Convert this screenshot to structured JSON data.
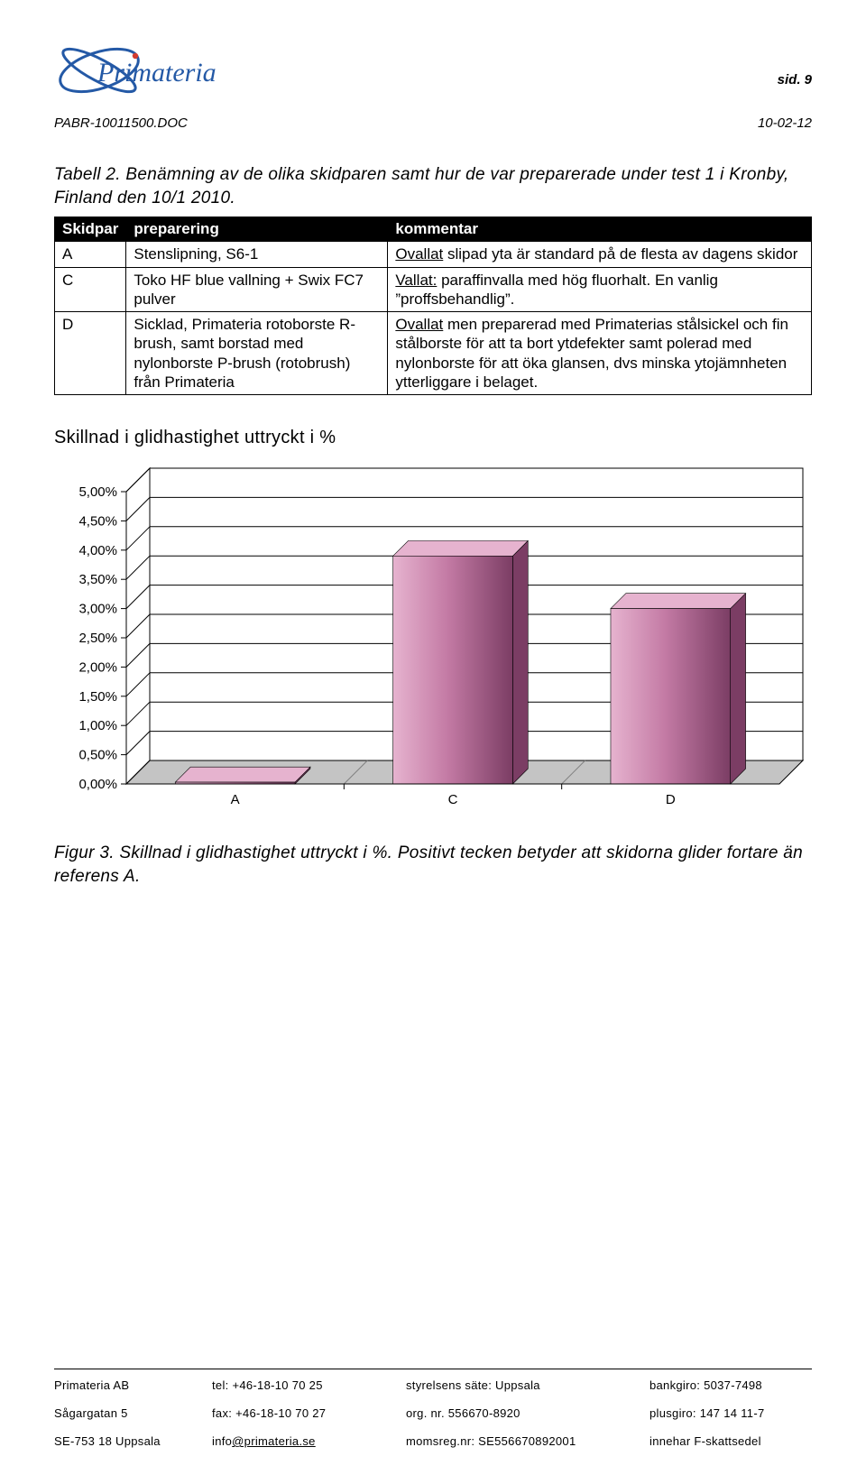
{
  "header": {
    "page_no_label": "sid. 9",
    "doc_code": "PABR-10011500.DOC",
    "doc_date": "10-02-12",
    "logo_text": "Primateria",
    "logo_color_blue": "#2459a6",
    "logo_color_text": "#2459a6",
    "logo_dot_color": "#d33b2f"
  },
  "table_caption": "Tabell 2. Benämning av de olika skidparen samt hur de var preparerade under test 1 i Kronby, Finland den 10/1 2010.",
  "table": {
    "columns": [
      "Skidpar",
      "preparering",
      "kommentar"
    ],
    "header_bg": "#000000",
    "header_fg": "#ffffff",
    "border_color": "#000000",
    "rows": [
      {
        "c0": "A",
        "c1": "Stenslipning, S6-1",
        "c2_pre": "Ovallat",
        "c2_rest": " slipad yta är standard på de flesta av dagens skidor"
      },
      {
        "c0": "C",
        "c1": "Toko HF blue vallning + Swix FC7 pulver",
        "c2_pre": "Vallat:",
        "c2_rest": " paraffinvalla med hög fluorhalt. En vanlig ”proffsbehandlig”."
      },
      {
        "c0": "D",
        "c1": "Sicklad, Primateria rotoborste R-brush, samt borstad med nylonborste P-brush (rotobrush) från Primateria",
        "c2_pre": "Ovallat",
        "c2_rest": " men preparerad med Primaterias stålsickel och fin stålborste för att ta bort ytdefekter samt polerad med nylonborste för att öka glansen, dvs minska ytojämnheten ytterliggare i belaget."
      }
    ]
  },
  "chart": {
    "title": "Skillnad i glidhastighet uttryckt i %",
    "type": "bar-3d",
    "categories": [
      "A",
      "C",
      "D"
    ],
    "values": [
      0.03,
      3.9,
      3.0
    ],
    "ymin": 0,
    "ymax": 5,
    "ytick_step": 0.5,
    "ytick_labels": [
      "0,00%",
      "0,50%",
      "1,00%",
      "1,50%",
      "2,00%",
      "2,50%",
      "3,00%",
      "3,50%",
      "4,00%",
      "4,50%",
      "5,00%"
    ],
    "bar_fill": "#c47ba5",
    "bar_fill_dark": "#7b3d64",
    "bar_top": "#e6b3cf",
    "floor_color": "#c4c4c4",
    "wall_color": "#ffffff",
    "grid_color": "#000000",
    "axis_color": "#000000",
    "label_fontsize": 15,
    "tick_fontsize": 15
  },
  "figure_caption": "Figur 3. Skillnad i glidhastighet uttryckt i %. Positivt tecken betyder att skidorna glider fortare än referens A.",
  "footer": {
    "rows": [
      [
        "Primateria AB",
        "tel: +46-18-10 70 25",
        "styrelsens säte: Uppsala",
        "bankgiro: 5037-7498"
      ],
      [
        "Sågargatan 5",
        "fax: +46-18-10 70 27",
        "org. nr. 556670-8920",
        "plusgiro: 147 14 11-7"
      ],
      [
        "SE-753 18 Uppsala",
        "info@primateria.se",
        "momsreg.nr: SE556670892001",
        "innehar F-skattsedel"
      ]
    ],
    "email_cell": {
      "row": 2,
      "col": 1,
      "prefix": "info",
      "domain": "@primateria.se"
    }
  }
}
